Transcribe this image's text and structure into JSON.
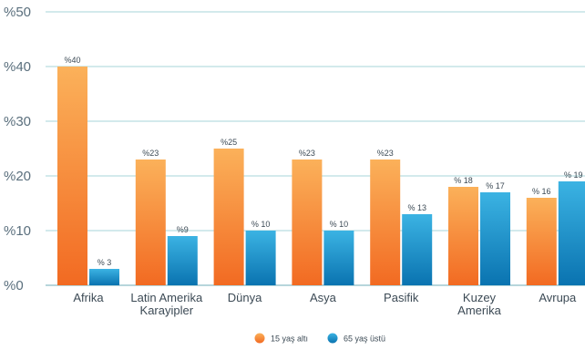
{
  "chart_data": {
    "type": "bar",
    "categories": [
      [
        "Afrika"
      ],
      [
        "Latin Amerika",
        "Karayipler"
      ],
      [
        "Dünya"
      ],
      [
        "Asya"
      ],
      [
        "Pasifik"
      ],
      [
        "Kuzey",
        "Amerika"
      ],
      [
        "Avrupa"
      ]
    ],
    "series": [
      {
        "name": "15 yaş altı",
        "values": [
          40,
          23,
          25,
          23,
          23,
          18,
          16
        ],
        "labels": [
          "%40",
          "%23",
          "%25",
          "%23",
          "%23",
          "% 18",
          "% 16"
        ],
        "color_top": "#fbb15a",
        "color_bottom": "#f26a22"
      },
      {
        "name": "65 yaş üstü",
        "values": [
          3,
          9,
          10,
          10,
          13,
          17,
          19
        ],
        "labels": [
          "% 3",
          "%9",
          "% 10",
          "% 10",
          "% 13",
          "% 17",
          "% 19"
        ],
        "color_top": "#3bb3e3",
        "color_bottom": "#0a73b0"
      }
    ],
    "yticks": [
      0,
      10,
      20,
      30,
      40,
      50
    ],
    "ytick_labels": [
      "%0",
      "%10",
      "%20",
      "%30",
      "%40",
      "%50"
    ],
    "ylim": [
      0,
      50
    ],
    "grid": true,
    "gridline_color": "#b9dee0",
    "legend_position": "bottom-center"
  }
}
